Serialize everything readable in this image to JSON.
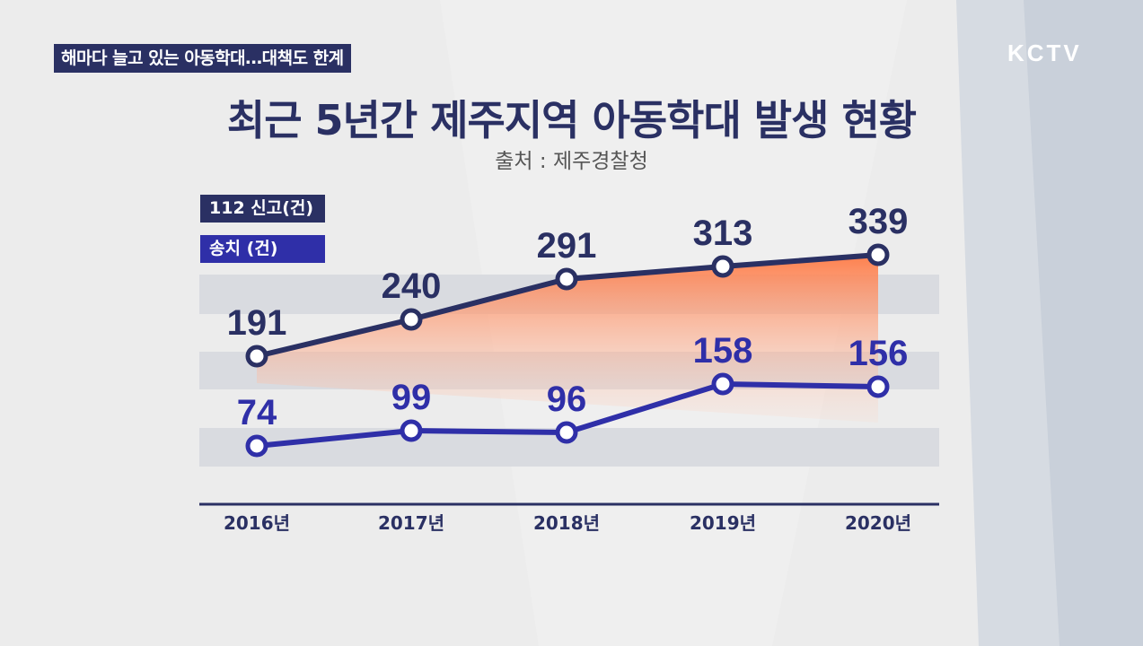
{
  "caption": "해마다 늘고 있는 아동학대…대책도 한계",
  "logo": "KCTV",
  "chart_data": {
    "type": "line",
    "title": "최근 5년간 제주지역 아동학대 발생 현황",
    "subtitle": "출처 : 제주경찰청",
    "categories": [
      "2016년",
      "2017년",
      "2018년",
      "2019년",
      "2020년"
    ],
    "series": [
      {
        "name": "112 신고(건)",
        "values": [
          191,
          240,
          291,
          313,
          339
        ],
        "color": "#2a3063"
      },
      {
        "name": "송치 (건)",
        "values": [
          74,
          99,
          96,
          158,
          156
        ],
        "color": "#2f2fa8"
      }
    ],
    "area_color": "#ff8a5c",
    "grid": true,
    "legend": "top-left",
    "ylim": [
      0,
      400
    ]
  }
}
